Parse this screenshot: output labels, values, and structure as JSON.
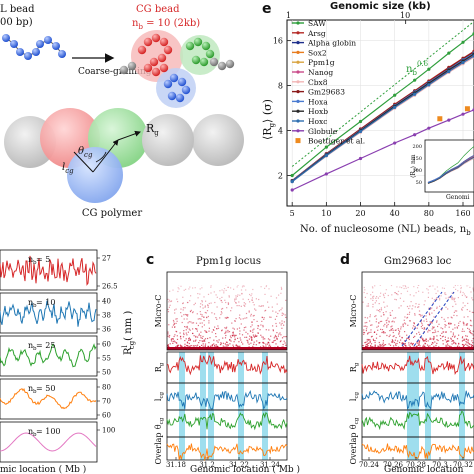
{
  "top_left": {
    "nl_bead_label_line1": "L bead",
    "nl_bead_label_line2": "00 bp)",
    "arrow_label": "Coarse-graining",
    "cg_bead_title": "CG bead",
    "cg_bead_subtitle": "n",
    "cg_bead_subtitle_sub": "b",
    "cg_bead_subtitle_rest": " = 10 (2kb)",
    "theta_label": "θ",
    "theta_sub": "cg",
    "lcg_label": "l",
    "lcg_sub": "cg",
    "rg_label": "R",
    "rg_sub": "g",
    "polymer_label": "CG polymer"
  },
  "panel_e": {
    "letter": "e",
    "top_axis_title": "Genomic size (kb)",
    "top_ticks": [
      "1",
      "10"
    ],
    "ylabel": "⟨R",
    "ylabel_sub": "g",
    "ylabel_rest": "⟩ (σ)",
    "xlabel": "No. of nucleosome (NL) beads, n",
    "xlabel_sub": "b",
    "slope_label_base": "n",
    "slope_label_sub": "b",
    "slope_label_exp": "0.6",
    "legend": [
      "SAW",
      "Arsg",
      "Alpha globin",
      "Sox2",
      "Ppm1g",
      "Nanog",
      "Cbx8",
      "Gm29683",
      "Hoxa",
      "Hoxb",
      "Hoxc",
      "Globule",
      "Boettiger et al."
    ],
    "inset_ylabel": "⟨R",
    "inset_ylabel_sub": "g",
    "inset_ylabel_rest": "⟩ nm",
    "inset_yticks": [
      "200",
      "150",
      "100",
      "50"
    ],
    "inset_xlabel": "Genomi"
  },
  "chart_data": [
    {
      "type": "line",
      "title": "",
      "top_axis_title": "Genomic size (kb)",
      "xlabel": "No. of nucleosome (NL) beads, n_b",
      "ylabel": "⟨R_g⟩ (σ)",
      "log_x": true,
      "log_y": true,
      "xlim": [
        4.5,
        200
      ],
      "ylim": [
        1.25,
        22
      ],
      "x_ticks": [
        "5",
        "10",
        "20",
        "40",
        "80",
        "160"
      ],
      "y_ticks": [
        "2",
        "4",
        "8",
        "16"
      ],
      "x": [
        5,
        10,
        20,
        40,
        60,
        80,
        120,
        160,
        200
      ],
      "series": [
        {
          "name": "SAW",
          "color": "#2e9e3b",
          "values": [
            2.0,
            3.1,
            4.6,
            6.9,
            8.7,
            10.3,
            13.2,
            15.6,
            17.8
          ]
        },
        {
          "name": "Arsg",
          "color": "#b52b27",
          "values": [
            1.85,
            2.8,
            4.1,
            6.0,
            7.4,
            8.6,
            10.6,
            12.2,
            13.6
          ]
        },
        {
          "name": "Alpha globin",
          "color": "#1e2f8c",
          "values": [
            1.85,
            2.78,
            4.05,
            5.9,
            7.3,
            8.45,
            10.4,
            12.0,
            13.3
          ]
        },
        {
          "name": "Sox2",
          "color": "#e87c1e",
          "values": [
            1.83,
            2.74,
            3.98,
            5.8,
            7.1,
            8.25,
            10.1,
            11.6,
            12.9
          ]
        },
        {
          "name": "Ppm1g",
          "color": "#d9a441",
          "values": [
            1.84,
            2.76,
            4.0,
            5.85,
            7.2,
            8.35,
            10.25,
            11.8,
            13.1
          ]
        },
        {
          "name": "Nanog",
          "color": "#c94b8a",
          "values": [
            1.83,
            2.73,
            3.95,
            5.75,
            7.05,
            8.15,
            10.0,
            11.5,
            12.7
          ]
        },
        {
          "name": "Cbx8",
          "color": "#f2b6b6",
          "values": [
            1.82,
            2.7,
            3.9,
            5.65,
            6.9,
            8.0,
            9.8,
            11.2,
            12.4
          ]
        },
        {
          "name": "Gm29683",
          "color": "#8b1a1a",
          "values": [
            1.85,
            2.8,
            4.08,
            5.95,
            7.35,
            8.5,
            10.5,
            12.1,
            13.45
          ]
        },
        {
          "name": "Hoxa",
          "color": "#4a7bd0",
          "values": [
            1.84,
            2.77,
            4.02,
            5.88,
            7.25,
            8.4,
            10.3,
            11.9,
            13.2
          ]
        },
        {
          "name": "Hoxb",
          "color": "#2a2a2a",
          "values": [
            1.83,
            2.75,
            3.99,
            5.82,
            7.15,
            8.3,
            10.2,
            11.7,
            13.0
          ]
        },
        {
          "name": "Hoxc",
          "color": "#2f6fb0",
          "values": [
            1.82,
            2.72,
            3.94,
            5.72,
            7.0,
            8.1,
            9.95,
            11.4,
            12.6
          ]
        },
        {
          "name": "Globule",
          "color": "#8a3fb0",
          "values": [
            1.6,
            2.05,
            2.6,
            3.3,
            3.75,
            4.15,
            4.7,
            5.15,
            5.5
          ]
        }
      ],
      "points": {
        "name": "Boettiger et al.",
        "color": "#ee8a1f",
        "x": [
          100,
          175
        ],
        "y": [
          4.8,
          5.6
        ]
      },
      "reference_line": {
        "label": "n_b^0.6",
        "x": [
          5,
          200
        ],
        "y": [
          2.3,
          21.5
        ]
      }
    },
    {
      "type": "line",
      "title": "",
      "xlabel": "Genomic location ( Mb )",
      "ylabel": "R_cg^l ( nm )",
      "series": [
        {
          "name": "n_b = 5",
          "color": "#d62728",
          "y_ticks": [
            "27",
            "26.5"
          ]
        },
        {
          "name": "n_b = 10",
          "color": "#1f77b4",
          "y_ticks": [
            "40",
            "38",
            "36"
          ]
        },
        {
          "name": "n_b = 25",
          "color": "#2ca02c",
          "y_ticks": [
            "60",
            "55",
            "50"
          ]
        },
        {
          "name": "n_b = 50",
          "color": "#ff7f0e",
          "y_ticks": [
            "80",
            "70",
            "60"
          ]
        },
        {
          "name": "n_b = 100",
          "color": "#e377c2",
          "y_ticks": [
            "100"
          ]
        }
      ],
      "x_ticks": [],
      "labels": [
        "n_b = 5",
        "n_b = 10",
        "n_b = 25",
        "n_b = 50",
        "n_b = 100"
      ]
    },
    {
      "type": "heatmap",
      "letter": "c",
      "title": "Ppm1g locus",
      "xlabel": "Genomic location ( Mb )",
      "x_ticks": [
        "31.18",
        "31.2",
        "31.22",
        "31.24"
      ],
      "row_labels": [
        "Micro-C",
        "R_g^l",
        "l_cg^l",
        "θ_cg^l",
        "Overlap"
      ],
      "row_colors": [
        "#c8102e",
        "#d62728",
        "#1f77b4",
        "#2ca02c",
        "#ff7f0e"
      ],
      "highlight_color": "#7fd3e8"
    },
    {
      "type": "heatmap",
      "letter": "d",
      "title": "Gm29683 loc",
      "xlabel": "Genomic location",
      "x_ticks": [
        "70.24",
        "70.26",
        "70.28",
        "70.3",
        "70.32"
      ],
      "row_labels": [
        "Micro-C",
        "R_g^l",
        "l_cg^l",
        "θ_cg^l",
        "Overlap"
      ],
      "row_colors": [
        "#c8102e",
        "#d62728",
        "#1f77b4",
        "#2ca02c",
        "#ff7f0e"
      ],
      "highlight_color": "#7fd3e8"
    }
  ],
  "panel_b": {
    "labels": [
      "n",
      "n",
      "n",
      "n",
      "n"
    ],
    "label_subs": [
      "b",
      "b",
      "b",
      "b",
      "b"
    ],
    "label_vals": [
      " = 5",
      " = 10",
      " = 25",
      " = 50",
      " = 100"
    ],
    "y_ticks": [
      [
        "27",
        "26.5"
      ],
      [
        "40",
        "38",
        "36"
      ],
      [
        "60",
        "55",
        "50"
      ],
      [
        "80",
        "70",
        "60"
      ],
      [
        "100"
      ]
    ],
    "ylabel": "R",
    "ylabel_sup": "l",
    "ylabel_sub": "cg",
    "ylabel_rest": "( nm )",
    "xlabel": "mic location ( Mb )"
  },
  "panel_c": {
    "letter": "c",
    "title": "Ppm1g locus",
    "row_labels": [
      "Micro-C",
      "R",
      "l",
      "θ",
      "Overlap"
    ],
    "row_label_subs": [
      "",
      "g",
      "cg",
      "cg",
      ""
    ],
    "x_ticks": [
      "31.18",
      "31.2",
      "31.22",
      "31.24"
    ],
    "xlabel": "Genomic location ( Mb )"
  },
  "panel_d": {
    "letter": "d",
    "title": "Gm29683 loc",
    "row_labels": [
      "Micro-C",
      "R",
      "l",
      "θ",
      "Overlap"
    ],
    "row_label_subs": [
      "",
      "g",
      "cg",
      "cg",
      ""
    ],
    "x_ticks": [
      "70.24",
      "70.26",
      "70.28",
      "70.3",
      "70.32"
    ],
    "xlabel": "Genomic location"
  }
}
